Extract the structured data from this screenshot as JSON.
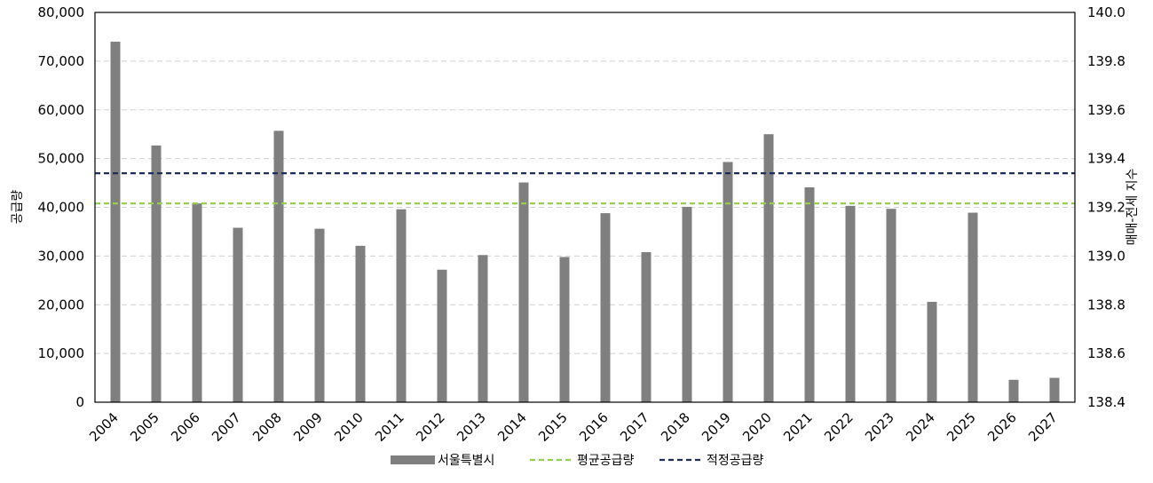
{
  "chart_data": {
    "type": "bar",
    "categories": [
      "2004",
      "2005",
      "2006",
      "2007",
      "2008",
      "2009",
      "2010",
      "2011",
      "2012",
      "2013",
      "2014",
      "2015",
      "2016",
      "2017",
      "2018",
      "2019",
      "2020",
      "2021",
      "2022",
      "2023",
      "2024",
      "2025",
      "2026",
      "2027"
    ],
    "series": [
      {
        "name": "서울특별시",
        "type": "bar",
        "color": "#7f7f7f",
        "values": [
          74000,
          52700,
          40800,
          35800,
          55700,
          35600,
          32100,
          39600,
          27200,
          30200,
          45100,
          29800,
          38800,
          30800,
          40100,
          49300,
          55000,
          44100,
          40300,
          39700,
          20600,
          38900,
          4600,
          5000
        ]
      },
      {
        "name": "평균공급량",
        "type": "hline",
        "color": "#92d050",
        "style": "dashed",
        "value": 40800
      },
      {
        "name": "적정공급량",
        "type": "hline",
        "color": "#1f2d5c",
        "style": "dashed",
        "value": 47000
      }
    ],
    "ylabel": "공급량",
    "y2label": "매매-전세 지수",
    "ylim": [
      0,
      80000
    ],
    "yticks": [
      "0",
      "10,000",
      "20,000",
      "30,000",
      "40,000",
      "50,000",
      "60,000",
      "70,000",
      "80,000"
    ],
    "y2lim": [
      138.4,
      140.0
    ],
    "y2ticks": [
      "138.4",
      "138.6",
      "138.8",
      "139.0",
      "139.2",
      "139.4",
      "139.6",
      "139.8",
      "140.0"
    ],
    "grid": "horizontal-dashed",
    "legend_position": "bottom"
  }
}
